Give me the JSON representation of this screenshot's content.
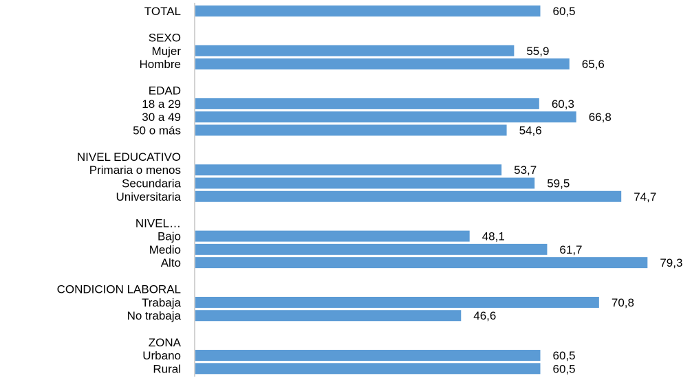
{
  "colors": {
    "bar": "#5b9bd5",
    "axis": "#a6a6a6",
    "text": "#000000"
  },
  "chart_data": {
    "type": "bar",
    "orientation": "horizontal",
    "title": "",
    "xlabel": "",
    "ylabel": "",
    "xlim": [
      0,
      84
    ],
    "grid": false,
    "legend": "none",
    "categories": [
      "TOTAL",
      "",
      "SEXO",
      "Mujer",
      "Hombre",
      "",
      "EDAD",
      "18 a 29",
      "30 a 49",
      "50 o más",
      "",
      "NIVEL EDUCATIVO",
      "Primaria o menos",
      "Secundaria",
      "Universitaria",
      "",
      "NIVEL…",
      "Bajo",
      "Medio",
      "Alto",
      "",
      "CONDICION LABORAL",
      "Trabaja",
      "No trabaja",
      "",
      "ZONA",
      "Urbano",
      "Rural"
    ],
    "values": [
      60.5,
      null,
      null,
      55.9,
      65.6,
      null,
      null,
      60.3,
      66.8,
      54.6,
      null,
      null,
      53.7,
      59.5,
      74.7,
      null,
      null,
      48.1,
      61.7,
      79.3,
      null,
      null,
      70.8,
      46.6,
      null,
      null,
      60.5,
      60.5
    ],
    "value_labels": [
      "60,5",
      "",
      "",
      "55,9",
      "65,6",
      "",
      "",
      "60,3",
      "66,8",
      "54,6",
      "",
      "",
      "53,7",
      "59,5",
      "74,7",
      "",
      "",
      "48,1",
      "61,7",
      "79,3",
      "",
      "",
      "70,8",
      "46,6",
      "",
      "",
      "60,5",
      "60,5"
    ]
  }
}
